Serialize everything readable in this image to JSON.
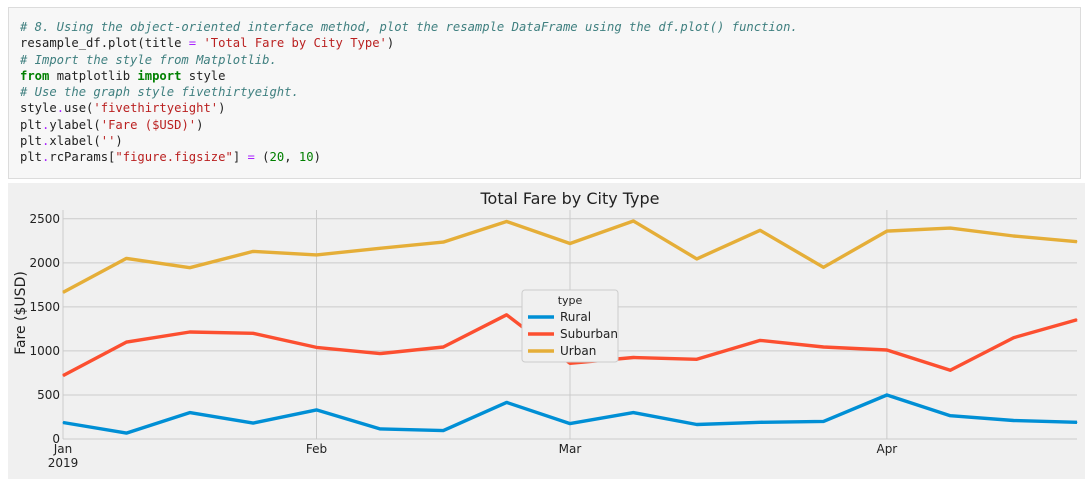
{
  "code_cell": {
    "lines": [
      {
        "parts": [
          {
            "cls": "cm",
            "t": "# 8. Using the object-oriented interface method, plot the resample DataFrame using the df.plot() function."
          }
        ]
      },
      {
        "parts": [
          {
            "cls": "",
            "t": "resample_df.plot(title "
          },
          {
            "cls": "op",
            "t": "="
          },
          {
            "cls": "",
            "t": " "
          },
          {
            "cls": "st",
            "t": "'Total Fare by City Type'"
          },
          {
            "cls": "",
            "t": ")"
          }
        ]
      },
      {
        "parts": [
          {
            "cls": "cm",
            "t": "# Import the style from Matplotlib."
          }
        ]
      },
      {
        "parts": [
          {
            "cls": "kw",
            "t": "from"
          },
          {
            "cls": "",
            "t": " matplotlib "
          },
          {
            "cls": "kw",
            "t": "import"
          },
          {
            "cls": "",
            "t": " style"
          }
        ]
      },
      {
        "parts": [
          {
            "cls": "cm",
            "t": "# Use the graph style fivethirtyeight."
          }
        ]
      },
      {
        "parts": [
          {
            "cls": "",
            "t": "style"
          },
          {
            "cls": "op",
            "t": "."
          },
          {
            "cls": "",
            "t": "use("
          },
          {
            "cls": "st",
            "t": "'fivethirtyeight'"
          },
          {
            "cls": "",
            "t": ")"
          }
        ]
      },
      {
        "parts": [
          {
            "cls": "",
            "t": "plt"
          },
          {
            "cls": "op",
            "t": "."
          },
          {
            "cls": "",
            "t": "ylabel("
          },
          {
            "cls": "st",
            "t": "'Fare ($USD)'"
          },
          {
            "cls": "",
            "t": ")"
          }
        ]
      },
      {
        "parts": [
          {
            "cls": "",
            "t": "plt"
          },
          {
            "cls": "op",
            "t": "."
          },
          {
            "cls": "",
            "t": "xlabel("
          },
          {
            "cls": "st",
            "t": "''"
          },
          {
            "cls": "",
            "t": ")"
          }
        ]
      },
      {
        "parts": [
          {
            "cls": "",
            "t": "plt"
          },
          {
            "cls": "op",
            "t": "."
          },
          {
            "cls": "",
            "t": "rcParams["
          },
          {
            "cls": "st",
            "t": "\"figure.figsize\""
          },
          {
            "cls": "",
            "t": "] "
          },
          {
            "cls": "op",
            "t": "="
          },
          {
            "cls": "",
            "t": " ("
          },
          {
            "cls": "nu",
            "t": "20"
          },
          {
            "cls": "",
            "t": ", "
          },
          {
            "cls": "nu",
            "t": "10"
          },
          {
            "cls": "",
            "t": ")"
          }
        ]
      }
    ]
  },
  "chart_data": {
    "type": "line",
    "title": "Total Fare by City Type",
    "xlabel": "",
    "ylabel": "Fare ($USD)",
    "ylim": [
      0,
      2600
    ],
    "yticks": [
      0,
      500,
      1000,
      1500,
      2000,
      2500
    ],
    "xlim": [
      0,
      16
    ],
    "xticks": [
      {
        "pos": 0,
        "label": "Jan",
        "sublabel": "2019"
      },
      {
        "pos": 4,
        "label": "Feb",
        "sublabel": ""
      },
      {
        "pos": 8,
        "label": "Mar",
        "sublabel": ""
      },
      {
        "pos": 13,
        "label": "Apr",
        "sublabel": ""
      }
    ],
    "x": [
      0,
      1,
      2,
      3,
      4,
      5,
      6,
      7,
      8,
      9,
      10,
      11,
      12,
      13,
      14,
      15,
      16
    ],
    "series": [
      {
        "name": "Rural",
        "color": "#008fd5",
        "values": [
          187,
          67,
          300,
          180,
          330,
          115,
          95,
          415,
          175,
          300,
          165,
          190,
          200,
          500,
          265,
          210,
          190
        ]
      },
      {
        "name": "Suburban",
        "color": "#fc4f30",
        "values": [
          720,
          1100,
          1215,
          1200,
          1040,
          970,
          1045,
          1410,
          860,
          925,
          905,
          1120,
          1045,
          1010,
          780,
          1150,
          1355
        ]
      },
      {
        "name": "Urban",
        "color": "#e5ae38",
        "values": [
          1665,
          2050,
          1945,
          2130,
          2090,
          2165,
          2235,
          2470,
          2220,
          2475,
          2045,
          2370,
          1950,
          2360,
          2395,
          2305,
          2240
        ]
      }
    ],
    "grid": true,
    "legend": {
      "title": "type",
      "placement": "center"
    }
  }
}
